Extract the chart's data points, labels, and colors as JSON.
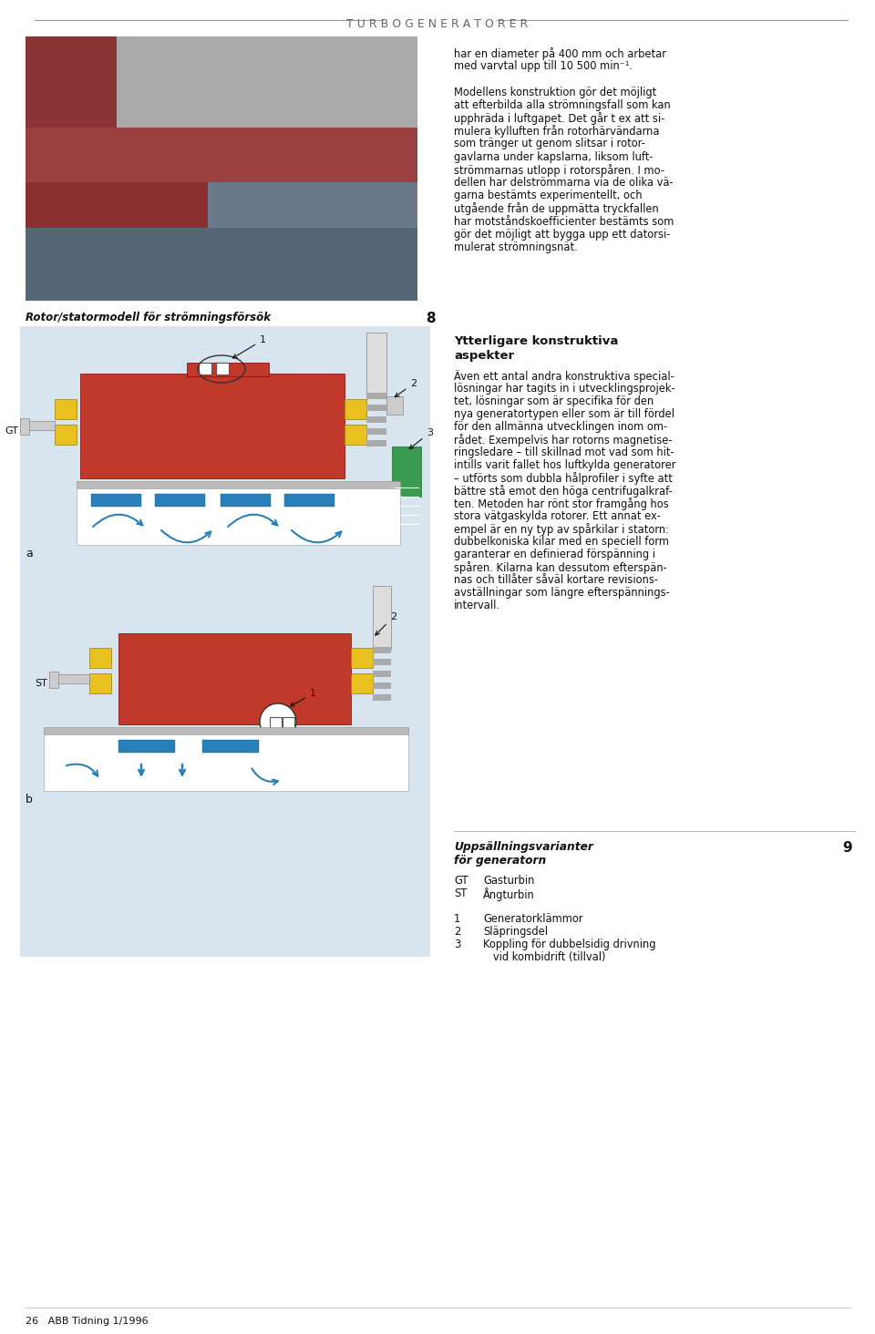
{
  "title_text": "T U R B O G E N E R A T O R E R",
  "bg_color": "#f0f0f0",
  "page_bg": "#ffffff",
  "right_col_texts": [
    "har en diameter på 400 mm och arbetar",
    "med varvtal upp till 10 500 min⁻¹.",
    "",
    "Modellens konstruktion gör det möjligt",
    "att efterbilda alla strömningsfall som kan",
    "upphräda i luftgapet. Det går t ex att si-",
    "mulera kylluften från rotorhärvändarna",
    "som tränger ut genom slitsar i rotor-",
    "gavlarna under kapslarna, liksom luft-",
    "strömmarnas utlopp i rotorspåren. I mo-",
    "dellen har delströmmarna via de olika vä-",
    "garna bestämts experimentellt, och",
    "utgående från de uppmätta tryckfallen",
    "har motståndskoefficienter bestämts som",
    "gör det möjligt att bygga upp ett datorsi-",
    "mulerat strömningsnät."
  ],
  "caption_left": "Rotor/statormodell för strömningsförsök",
  "caption_num": "8",
  "right_section_title1": "Ytterligare konstruktiva",
  "right_section_title2": "aspekter",
  "right_section_body": [
    ")Även ett antal andra konstruktiva special-",
    "lösningar har tagits in i utvecklingsprojek-",
    "tet, lösningar som är specifika för den",
    "nya generatortypen eller som är till fördel",
    "för den allmänna utvecklingen inom om-",
    "rådet. Exempelvis har rotorns magnetise-",
    "ringsledare – till skillnad mot vad som hit-",
    "intills varit fallet hos luftkylda generatorer",
    "– utförts som dubbla hålprofiler i syfte att",
    "bättre stå emot den höga centrifugalkraf-",
    "ten. Metoden har rönt stor framgång hos",
    "stora vätgaskylda rotorer. Ett annat ex-",
    "empel är en ny typ av spårkilar i statorn:",
    "dubbelkoniska kilar med en speciell form",
    "garanterar en definierad förspänning i",
    "spåren. Kilarna kan dessutom efterspän-",
    "nas och tillåter såväl kortare revisions-",
    "avställningar som längre efterspännings-",
    "intervall."
  ],
  "legend_title1": "Uppsällningsvarianter",
  "legend_title2": "för generatorn",
  "legend_num": "9",
  "legend_items": [
    [
      "GT",
      "Gasturbin"
    ],
    [
      "ST",
      "Ångturbin"
    ],
    [
      "",
      ""
    ],
    [
      "1",
      "Generatorklämmor"
    ],
    [
      "2",
      "Släpringsdel"
    ],
    [
      "3",
      "Koppling för dubbelsidig drivning"
    ],
    [
      "",
      "   vid kombidrift (tillval)"
    ]
  ],
  "footer_text": "26   ABB Tidning 1/1996",
  "red_color": "#c0392b",
  "yellow_color": "#e8c020",
  "blue_color": "#2980b9",
  "green_color": "#3a9a50",
  "light_bg": "#d8e5ee"
}
